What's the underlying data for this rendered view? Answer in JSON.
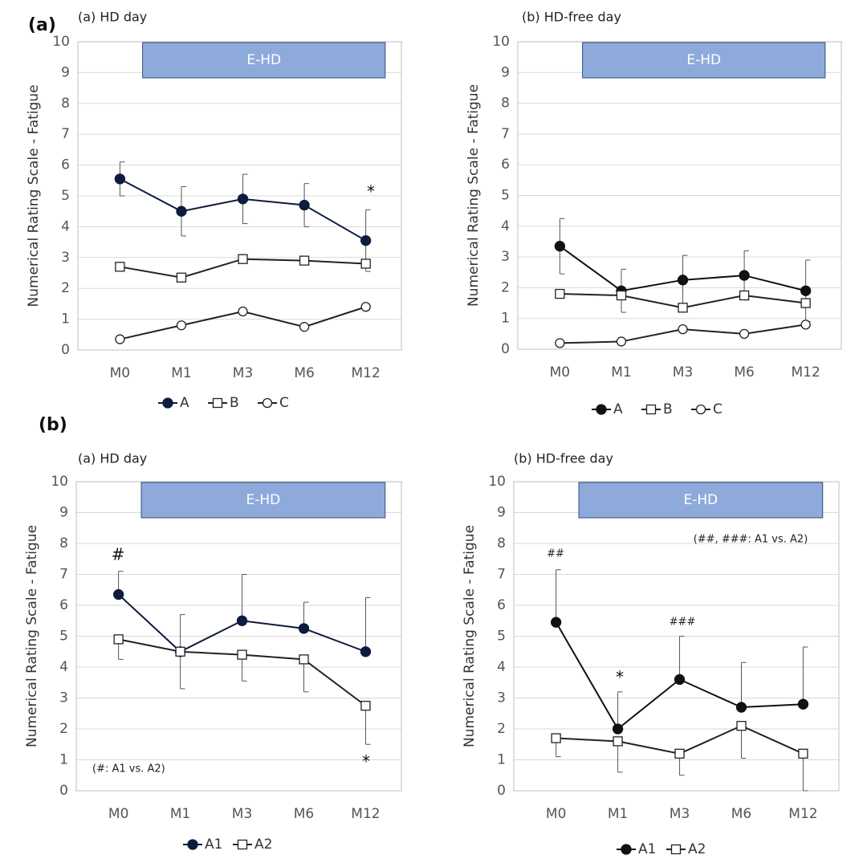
{
  "chart_data": [
    {
      "type": "line",
      "panel_label": "(a)",
      "title": "(a) HD day",
      "ylabel": "Numerical Rating Scale - Fatigue",
      "box_label": "E-HD",
      "categories": [
        "M0",
        "M1",
        "M3",
        "M6",
        "M12"
      ],
      "ylim": [
        0,
        10
      ],
      "yticks": [
        0,
        1,
        2,
        3,
        4,
        5,
        6,
        7,
        8,
        9,
        10
      ],
      "grid": true,
      "legend": "bottom",
      "series": [
        {
          "name": "A",
          "color": "#0d1b3e",
          "marker": "filled-circle",
          "values": [
            5.55,
            4.5,
            4.9,
            4.7,
            3.55
          ],
          "errors": [
            0.55,
            0.8,
            0.8,
            0.7,
            1.0
          ],
          "error_direction": "both"
        },
        {
          "name": "B",
          "color": "#222222",
          "marker": "open-square",
          "values": [
            2.7,
            2.35,
            2.95,
            2.9,
            2.8
          ]
        },
        {
          "name": "C",
          "color": "#222222",
          "marker": "open-circle",
          "values": [
            0.35,
            0.8,
            1.25,
            0.75,
            1.4
          ]
        }
      ],
      "annotations": [
        "*"
      ]
    },
    {
      "type": "line",
      "title": "(b) HD-free day",
      "ylabel": "Numerical Rating Scale - Fatigue",
      "box_label": "E-HD",
      "categories": [
        "M0",
        "M1",
        "M3",
        "M6",
        "M12"
      ],
      "ylim": [
        0,
        10
      ],
      "yticks": [
        0,
        1,
        2,
        3,
        4,
        5,
        6,
        7,
        8,
        9,
        10
      ],
      "grid": true,
      "legend": "bottom",
      "series": [
        {
          "name": "A",
          "color": "#111111",
          "marker": "filled-circle",
          "values": [
            3.35,
            1.9,
            2.25,
            2.4,
            1.9
          ],
          "errors": [
            0.9,
            0.7,
            0.8,
            0.8,
            1.0
          ],
          "error_direction": "both"
        },
        {
          "name": "B",
          "color": "#222222",
          "marker": "open-square",
          "values": [
            1.8,
            1.75,
            1.35,
            1.75,
            1.5
          ]
        },
        {
          "name": "C",
          "color": "#222222",
          "marker": "open-circle",
          "values": [
            0.2,
            0.25,
            0.65,
            0.5,
            0.8
          ]
        }
      ],
      "annotations": []
    },
    {
      "type": "line",
      "panel_label": "(b)",
      "title": "(a) HD day",
      "ylabel": "Numerical Rating Scale - Fatigue",
      "box_label": "E-HD",
      "categories": [
        "M0",
        "M1",
        "M3",
        "M6",
        "M12"
      ],
      "ylim": [
        0,
        10
      ],
      "yticks": [
        0,
        1,
        2,
        3,
        4,
        5,
        6,
        7,
        8,
        9,
        10
      ],
      "grid": true,
      "legend": "bottom",
      "series": [
        {
          "name": "A1",
          "color": "#0d1b3e",
          "marker": "filled-circle",
          "values": [
            6.35,
            4.5,
            5.5,
            5.25,
            4.5
          ],
          "errors": [
            0.75,
            1.2,
            1.5,
            0.85,
            1.75
          ],
          "error_direction": "up"
        },
        {
          "name": "A2",
          "color": "#222222",
          "marker": "open-square",
          "values": [
            4.9,
            4.5,
            4.4,
            4.25,
            2.75
          ],
          "errors": [
            0.65,
            1.2,
            0.85,
            1.05,
            1.25
          ],
          "error_direction": "down"
        }
      ],
      "annotations": [
        "#",
        "*",
        "(#: A1 vs. A2)"
      ]
    },
    {
      "type": "line",
      "title": "(b) HD-free day",
      "ylabel": "Numerical Rating Scale - Fatigue",
      "box_label": "E-HD",
      "categories": [
        "M0",
        "M1",
        "M3",
        "M6",
        "M12"
      ],
      "ylim": [
        0,
        10
      ],
      "yticks": [
        0,
        1,
        2,
        3,
        4,
        5,
        6,
        7,
        8,
        9,
        10
      ],
      "grid": true,
      "legend": "bottom",
      "series": [
        {
          "name": "A1",
          "color": "#111111",
          "marker": "filled-circle",
          "values": [
            5.45,
            2.0,
            3.6,
            2.7,
            2.8
          ],
          "errors": [
            1.7,
            1.2,
            1.4,
            1.45,
            1.85
          ],
          "error_direction": "up"
        },
        {
          "name": "A2",
          "color": "#222222",
          "marker": "open-square",
          "values": [
            1.7,
            1.6,
            1.2,
            2.1,
            1.2
          ],
          "errors": [
            0.6,
            1.0,
            0.7,
            1.05,
            1.2
          ],
          "error_direction": "down"
        }
      ],
      "annotations": [
        "##",
        "*",
        "###",
        "(##, ###: A1 vs. A2)"
      ]
    }
  ]
}
